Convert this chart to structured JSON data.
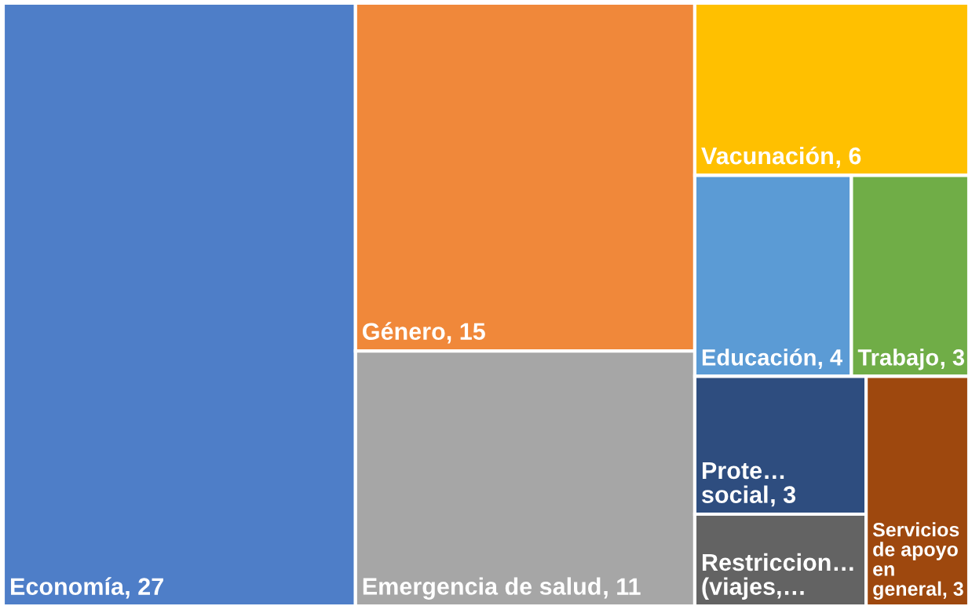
{
  "chart_data": {
    "type": "other",
    "categories": [
      "Economía",
      "Género",
      "Emergencia de salud",
      "Vacunación",
      "Educación",
      "Trabajo",
      "Prote… social",
      "Restriccion… (viajes,…",
      "Servicios de apoyo en general"
    ],
    "values": [
      27,
      15,
      11,
      6,
      4,
      3,
      3,
      null,
      3
    ],
    "value_labels": [
      ", 27",
      ", 15",
      ", 11",
      ", 6",
      ", 4",
      ", 3",
      ", 3",
      null,
      ", 3"
    ],
    "colors": [
      "#4e7ec8",
      "#f0883a",
      "#a6a6a6",
      "#ffc000",
      "#5b9bd5",
      "#70ad47",
      "#2e4d7f",
      "#636363",
      "#9e480e"
    ]
  }
}
